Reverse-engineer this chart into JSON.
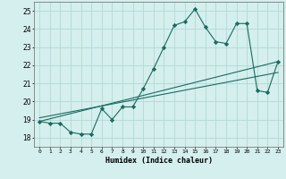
{
  "xlabel": "Humidex (Indice chaleur)",
  "ylabel": "",
  "xlim": [
    -0.5,
    23.5
  ],
  "ylim": [
    17.5,
    25.5
  ],
  "yticks": [
    18,
    19,
    20,
    21,
    22,
    23,
    24,
    25
  ],
  "xticks": [
    0,
    1,
    2,
    3,
    4,
    5,
    6,
    7,
    8,
    9,
    10,
    11,
    12,
    13,
    14,
    15,
    16,
    17,
    18,
    19,
    20,
    21,
    22,
    23
  ],
  "bg_color": "#d4efed",
  "grid_color": "#b2d9d6",
  "line_color": "#1a6b60",
  "line1_x": [
    0,
    1,
    2,
    3,
    4,
    5,
    6,
    7,
    8,
    9,
    10,
    11,
    12,
    13,
    14,
    15,
    16,
    17,
    18,
    19,
    20,
    21,
    22,
    23
  ],
  "line1_y": [
    18.9,
    18.8,
    18.8,
    18.3,
    18.2,
    18.2,
    19.6,
    19.0,
    19.7,
    19.7,
    20.7,
    21.8,
    23.0,
    24.2,
    24.4,
    25.1,
    24.1,
    23.3,
    23.2,
    24.3,
    24.3,
    20.6,
    20.5,
    22.2
  ],
  "line2_x": [
    0,
    23
  ],
  "line2_y": [
    18.9,
    22.2
  ],
  "line3_x": [
    0,
    23
  ],
  "line3_y": [
    19.1,
    21.6
  ],
  "marker": "D",
  "marker_size": 2.2,
  "line_width": 0.8
}
